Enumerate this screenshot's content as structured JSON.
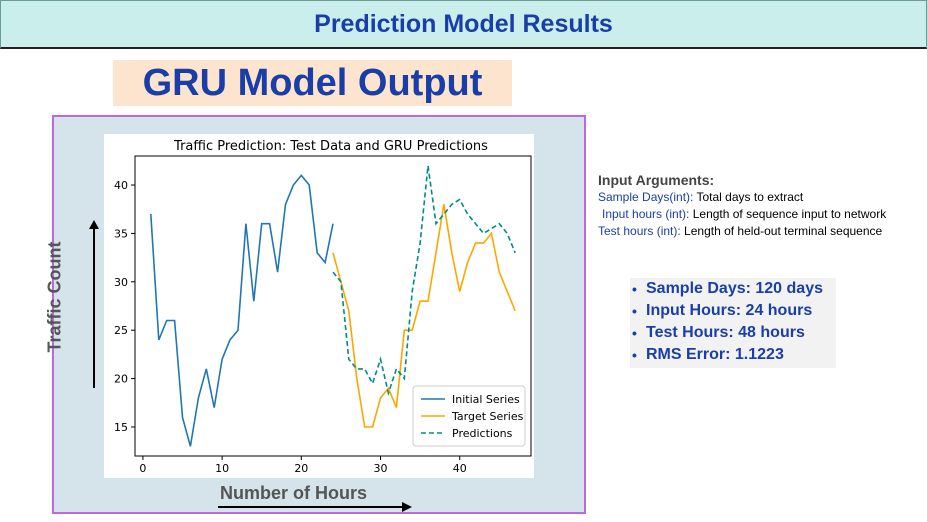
{
  "header": {
    "title": "Prediction Model Results"
  },
  "subtitle": "GRU Model Output",
  "chart_data": {
    "type": "line",
    "title": "Traffic Prediction: Test Data and GRU Predictions",
    "xlabel": "Number of Hours",
    "ylabel": "Traffic Count",
    "xlim": [
      -1,
      49
    ],
    "ylim": [
      12,
      43
    ],
    "xticks": [
      0,
      10,
      20,
      30,
      40
    ],
    "yticks": [
      15,
      20,
      25,
      30,
      35,
      40
    ],
    "legend_position": "lower-right",
    "series": [
      {
        "name": "Initial Series",
        "color": "#1f77b4",
        "style": "solid",
        "x": [
          1,
          2,
          3,
          4,
          5,
          6,
          7,
          8,
          9,
          10,
          11,
          12,
          13,
          14,
          15,
          16,
          17,
          18,
          19,
          20,
          21,
          22,
          23,
          24
        ],
        "y": [
          37,
          24,
          26,
          26,
          16,
          13,
          18,
          21,
          17,
          22,
          24,
          25,
          36,
          28,
          36,
          36,
          31,
          38,
          40,
          41,
          40,
          33,
          32,
          36
        ]
      },
      {
        "name": "Target Series",
        "color": "#ffa500",
        "style": "solid",
        "x": [
          24,
          25,
          26,
          27,
          28,
          29,
          30,
          31,
          32,
          33,
          34,
          35,
          36,
          37,
          38,
          39,
          40,
          41,
          42,
          43,
          44,
          45,
          46,
          47
        ],
        "y": [
          33,
          30,
          27,
          20,
          15,
          15,
          18,
          19,
          17,
          25,
          25,
          28,
          28,
          33,
          38,
          33,
          29,
          32,
          34,
          34,
          35,
          31,
          29,
          27
        ]
      },
      {
        "name": "Predictions",
        "color": "#008b8b",
        "style": "dashed",
        "x": [
          24,
          25,
          26,
          27,
          28,
          29,
          30,
          31,
          32,
          33,
          34,
          35,
          36,
          37,
          38,
          39,
          40,
          41,
          42,
          43,
          44,
          45,
          46,
          47
        ],
        "y": [
          31,
          30,
          22,
          21,
          21,
          19.5,
          22,
          18.5,
          21,
          20,
          29,
          34,
          42,
          36,
          37,
          38,
          38.5,
          37,
          36,
          35,
          35.5,
          36,
          35,
          33
        ]
      }
    ]
  },
  "input_arguments": {
    "title": "Input Arguments:",
    "items": [
      {
        "label": "Sample Days(int):",
        "desc": "Total days to extract"
      },
      {
        "label": "Input hours (int):",
        "desc": "Length of sequence input to network"
      },
      {
        "label": "Test hours (int):",
        "desc": "Length of held-out terminal sequence"
      }
    ]
  },
  "results": [
    "Sample Days: 120 days",
    "Input Hours: 24 hours",
    "Test Hours: 48 hours",
    "RMS Error: 1.1223"
  ]
}
